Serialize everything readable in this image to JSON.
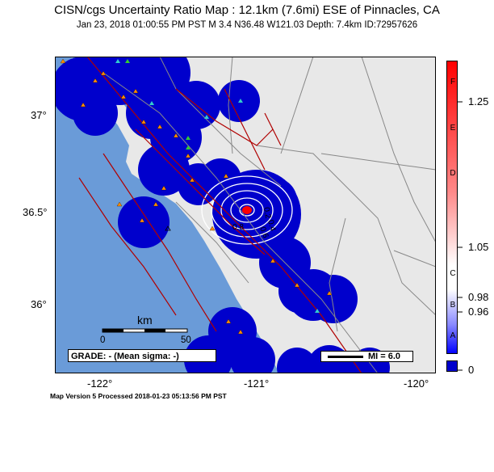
{
  "header": {
    "title": "CISN/cgs Uncertainty Ratio Map : 12.1km (7.6mi) ESE of Pinnacles, CA",
    "subtitle": "Jan 23, 2018 01:00:55 PM PST   M 3.4   N36.48 W121.03   Depth: 7.4km   ID:72957626"
  },
  "axes": {
    "lat_labels": [
      "37°",
      "36.5°",
      "36°"
    ],
    "lon_labels": [
      "-122°",
      "-121°",
      "-120°"
    ]
  },
  "contours": [
    "0.2",
    "0.4",
    "0.6",
    "0.8"
  ],
  "scale_bar": {
    "unit": "km",
    "ticks": [
      "0",
      "50"
    ]
  },
  "grade_box": "GRADE: - (Mean sigma: -)",
  "mi_legend": "MI = 6.0",
  "colorbar": {
    "letters": [
      "F",
      "E",
      "D",
      "C",
      "B",
      "A"
    ],
    "values": [
      "1.25",
      "1.05",
      "0.98",
      "0.96",
      "0"
    ]
  },
  "footer": "Map Version 5 Processed 2018-01-23 05:13:56 PM PST",
  "colors": {
    "ocean": "#6a9bd8",
    "land": "#e8e8e8",
    "uncertainty_low": "#0000cc",
    "epicenter": "#ff0000",
    "fault": "#b00000",
    "station": "#ff8c00"
  }
}
